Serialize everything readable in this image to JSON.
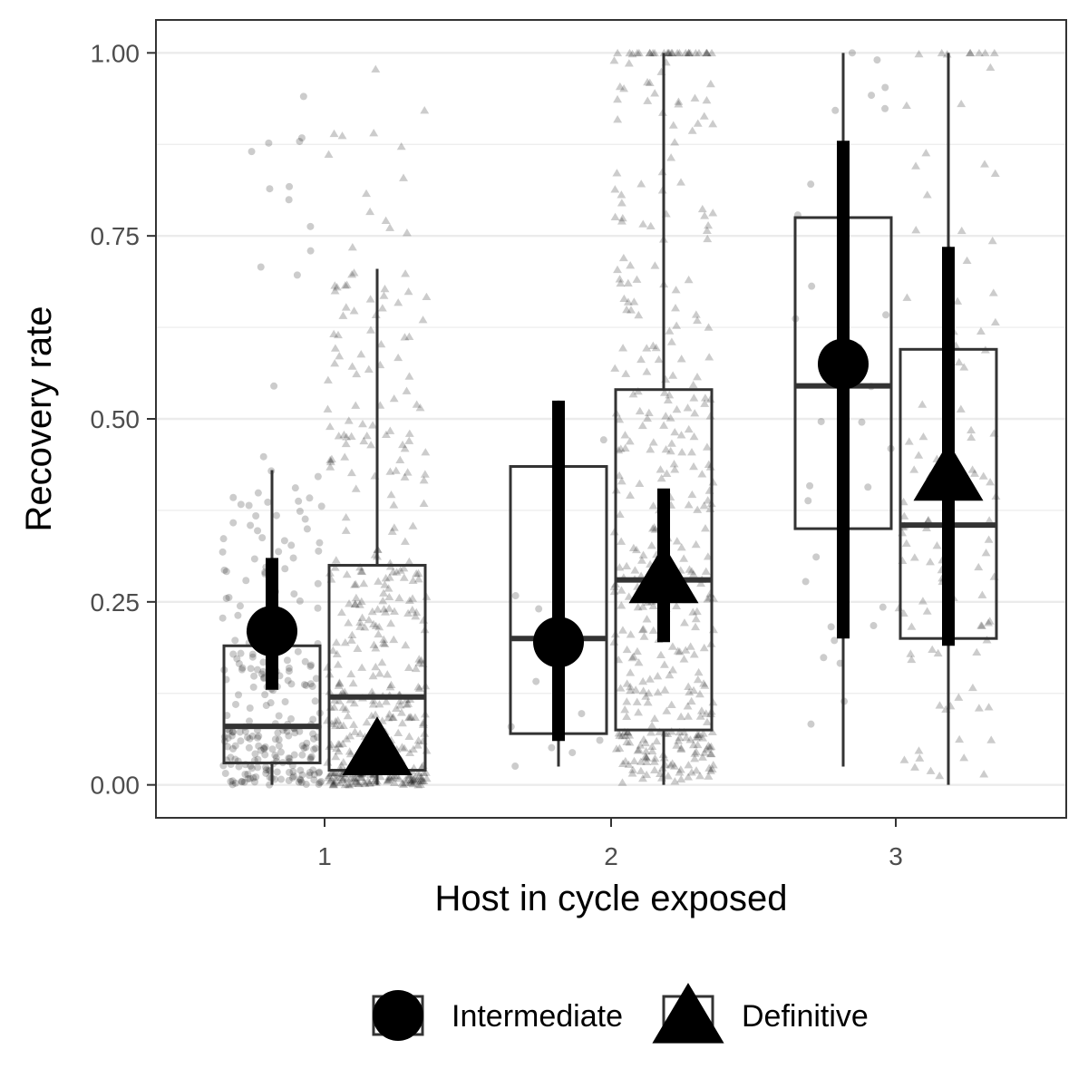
{
  "chart_data": {
    "type": "box",
    "xlabel": "Host in cycle exposed",
    "ylabel": "Recovery rate",
    "categories": [
      "1",
      "2",
      "3"
    ],
    "ylim": [
      -0.045,
      1.045
    ],
    "yticks": [
      "0.00",
      "0.25",
      "0.50",
      "0.75",
      "1.00"
    ],
    "ytick_values": [
      0,
      0.25,
      0.5,
      0.75,
      1.0
    ],
    "grid": true,
    "legend_position": "bottom",
    "colors": {
      "panel_border": "#333333",
      "gridline": "#ebebeb",
      "marks": "#000000",
      "box_line": "#333333"
    },
    "series": [
      {
        "name": "Intermediate",
        "shape": "circle",
        "groups": [
          {
            "category": "1",
            "box": {
              "q1": 0.03,
              "median": 0.08,
              "q3": 0.19,
              "whisker_low": 0.0,
              "whisker_high": 0.43
            },
            "mean": 0.21,
            "interval": [
              0.13,
              0.31
            ]
          },
          {
            "category": "2",
            "box": {
              "q1": 0.07,
              "median": 0.2,
              "q3": 0.435,
              "whisker_low": 0.025,
              "whisker_high": 0.525
            },
            "mean": 0.195,
            "interval": [
              0.06,
              0.525
            ]
          },
          {
            "category": "3",
            "box": {
              "q1": 0.35,
              "median": 0.545,
              "q3": 0.775,
              "whisker_low": 0.025,
              "whisker_high": 1.0
            },
            "mean": 0.575,
            "interval": [
              0.2,
              0.88
            ]
          }
        ]
      },
      {
        "name": "Definitive",
        "shape": "triangle",
        "groups": [
          {
            "category": "1",
            "box": {
              "q1": 0.02,
              "median": 0.12,
              "q3": 0.3,
              "whisker_low": 0.0,
              "whisker_high": 0.705
            },
            "mean": 0.055,
            "interval": [
              0.0,
              0.0
            ]
          },
          {
            "category": "2",
            "box": {
              "q1": 0.075,
              "median": 0.28,
              "q3": 0.54,
              "whisker_low": 0.0,
              "whisker_high": 1.0
            },
            "mean": 0.29,
            "interval": [
              0.195,
              0.405
            ]
          },
          {
            "category": "3",
            "box": {
              "q1": 0.2,
              "median": 0.355,
              "q3": 0.595,
              "whisker_low": 0.0,
              "whisker_high": 1.0
            },
            "mean": 0.43,
            "interval": [
              0.19,
              0.735
            ]
          }
        ]
      }
    ],
    "raw_points_description": "jittered individual observations, semi-transparent",
    "raw_point_counts": {
      "Intermediate": [
        260,
        12,
        30
      ],
      "Definitive": [
        420,
        420,
        110
      ]
    }
  },
  "legend": [
    {
      "label": "Intermediate",
      "shape": "circle"
    },
    {
      "label": "Definitive",
      "shape": "triangle"
    }
  ]
}
